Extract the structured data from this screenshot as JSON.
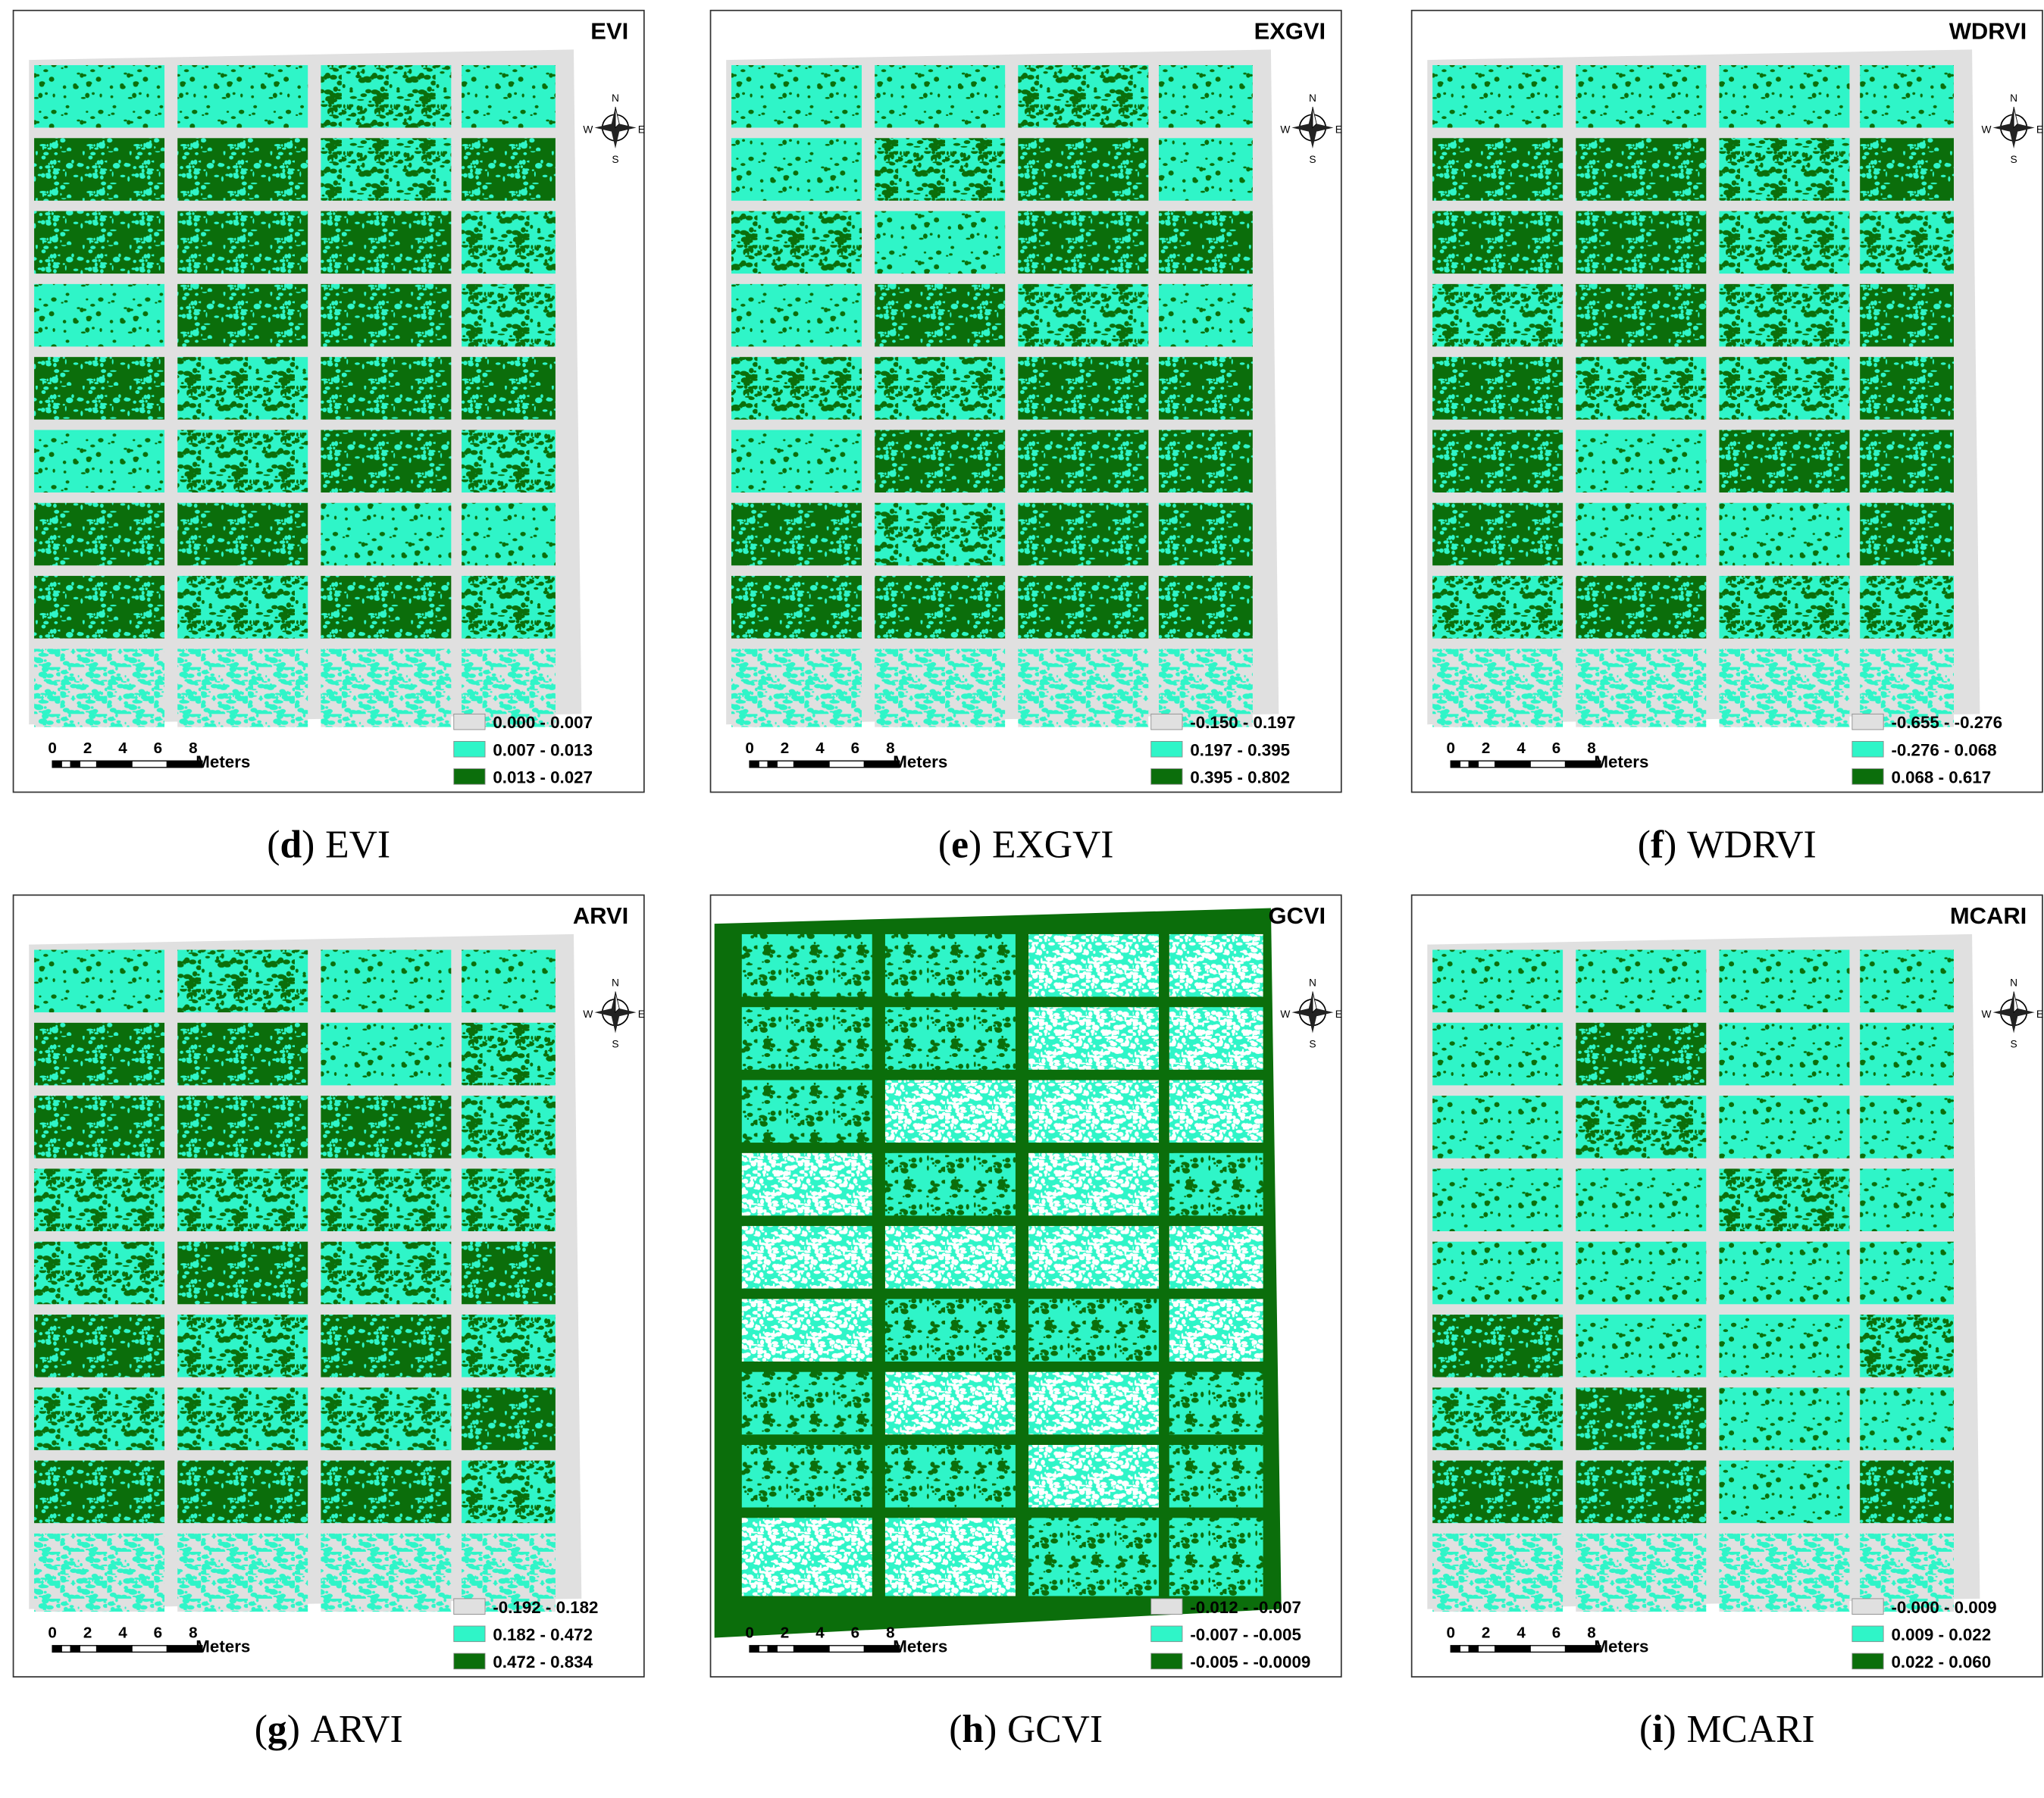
{
  "panels": [
    {
      "title": "EVI",
      "legend": [
        "0.000 - 0.007",
        "0.007 - 0.013",
        "0.013 - 0.027"
      ],
      "caption": {
        "letter": "d",
        "name": "EVI"
      }
    },
    {
      "title": "EXGVI",
      "legend": [
        "-0.150 - 0.197",
        "0.197 - 0.395",
        "0.395 - 0.802"
      ],
      "caption": {
        "letter": "e",
        "name": "EXGVI"
      }
    },
    {
      "title": "WDRVI",
      "legend": [
        "-0.655 - -0.276",
        "-0.276 - 0.068",
        "0.068 - 0.617"
      ],
      "caption": {
        "letter": "f",
        "name": "WDRVI"
      }
    },
    {
      "title": "ARVI",
      "legend": [
        "-0.192 - 0.182",
        "0.182 - 0.472",
        "0.472 - 0.834"
      ],
      "caption": {
        "letter": "g",
        "name": "ARVI"
      }
    },
    {
      "title": "GCVI",
      "legend": [
        "-0.012 - -0.007",
        "-0.007 - -0.005",
        "-0.005 - -0.0009"
      ],
      "caption": {
        "letter": "h",
        "name": "GCVI"
      }
    },
    {
      "title": "MCARI",
      "legend": [
        "-0.000 - 0.009",
        "0.009 - 0.022",
        "0.022 - 0.060"
      ],
      "caption": {
        "letter": "i",
        "name": "MCARI"
      }
    }
  ],
  "legend_colors": [
    "#e0e0e0",
    "#2ff5c8",
    "#0b6e0b"
  ],
  "scale_bar": {
    "ticks": [
      "0",
      "2",
      "4",
      "6",
      "8"
    ],
    "unit": "Meters"
  },
  "compass": {
    "n": "N",
    "s": "S",
    "e": "E",
    "w": "W"
  },
  "caption_brackets": [
    "(",
    ")"
  ]
}
